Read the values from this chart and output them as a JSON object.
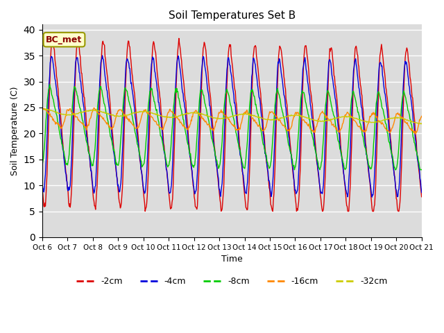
{
  "title": "Soil Temperatures Set B",
  "xlabel": "Time",
  "ylabel": "Soil Temperature (C)",
  "ylim": [
    0,
    41
  ],
  "yticks": [
    0,
    5,
    10,
    15,
    20,
    25,
    30,
    35,
    40
  ],
  "annotation": "BC_met",
  "bg_color": "#dcdcdc",
  "fig_color": "#ffffff",
  "series_colors": {
    "-2cm": "#dd0000",
    "-4cm": "#0000dd",
    "-8cm": "#00cc00",
    "-16cm": "#ff8800",
    "-32cm": "#cccc00"
  },
  "x_labels": [
    "Oct 6",
    "Oct 7",
    "Oct 8",
    "Oct 9",
    "Oct 10",
    "Oct 11",
    "Oct 12",
    "Oct 13",
    "Oct 14",
    "Oct 15",
    "Oct 16",
    "Oct 17",
    "Oct 18",
    "Oct 19",
    "Oct 20",
    "Oct 21"
  ],
  "num_points": 720
}
